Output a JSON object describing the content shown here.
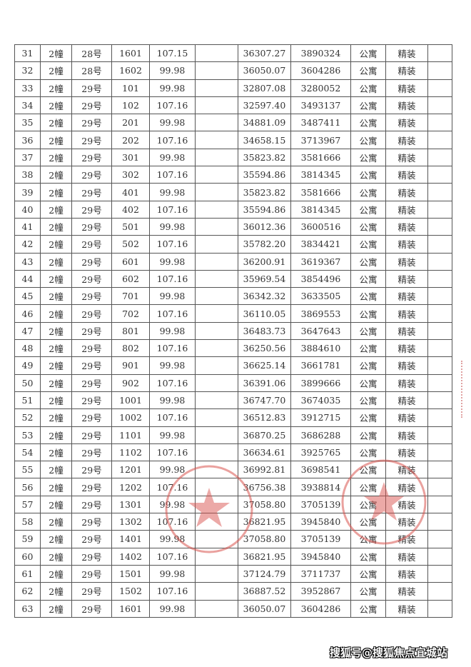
{
  "table": {
    "rows": [
      [
        "31",
        "2幢",
        "28号",
        "1601",
        "107.15",
        "",
        "36307.27",
        "3890324",
        "公寓",
        "精装",
        ""
      ],
      [
        "32",
        "2幢",
        "28号",
        "1602",
        "99.98",
        "",
        "36050.07",
        "3604286",
        "公寓",
        "精装",
        ""
      ],
      [
        "33",
        "2幢",
        "29号",
        "101",
        "99.98",
        "",
        "32807.08",
        "3280052",
        "公寓",
        "精装",
        ""
      ],
      [
        "34",
        "2幢",
        "29号",
        "102",
        "107.16",
        "",
        "32597.40",
        "3493137",
        "公寓",
        "精装",
        ""
      ],
      [
        "35",
        "2幢",
        "29号",
        "201",
        "99.98",
        "",
        "34881.09",
        "3487411",
        "公寓",
        "精装",
        ""
      ],
      [
        "36",
        "2幢",
        "29号",
        "202",
        "107.16",
        "",
        "34658.15",
        "3713967",
        "公寓",
        "精装",
        ""
      ],
      [
        "37",
        "2幢",
        "29号",
        "301",
        "99.98",
        "",
        "35823.82",
        "3581666",
        "公寓",
        "精装",
        ""
      ],
      [
        "38",
        "2幢",
        "29号",
        "302",
        "107.16",
        "",
        "35594.86",
        "3814345",
        "公寓",
        "精装",
        ""
      ],
      [
        "39",
        "2幢",
        "29号",
        "401",
        "99.98",
        "",
        "35823.82",
        "3581666",
        "公寓",
        "精装",
        ""
      ],
      [
        "40",
        "2幢",
        "29号",
        "402",
        "107.16",
        "",
        "35594.86",
        "3814345",
        "公寓",
        "精装",
        ""
      ],
      [
        "41",
        "2幢",
        "29号",
        "501",
        "99.98",
        "",
        "36012.36",
        "3600516",
        "公寓",
        "精装",
        ""
      ],
      [
        "42",
        "2幢",
        "29号",
        "502",
        "107.16",
        "",
        "35782.20",
        "3834421",
        "公寓",
        "精装",
        ""
      ],
      [
        "43",
        "2幢",
        "29号",
        "601",
        "99.98",
        "",
        "36200.91",
        "3619367",
        "公寓",
        "精装",
        ""
      ],
      [
        "44",
        "2幢",
        "29号",
        "602",
        "107.16",
        "",
        "35969.54",
        "3854496",
        "公寓",
        "精装",
        ""
      ],
      [
        "45",
        "2幢",
        "29号",
        "701",
        "99.98",
        "",
        "36342.32",
        "3633505",
        "公寓",
        "精装",
        ""
      ],
      [
        "46",
        "2幢",
        "29号",
        "702",
        "107.16",
        "",
        "36110.05",
        "3869553",
        "公寓",
        "精装",
        ""
      ],
      [
        "47",
        "2幢",
        "29号",
        "801",
        "99.98",
        "",
        "36483.73",
        "3647643",
        "公寓",
        "精装",
        ""
      ],
      [
        "48",
        "2幢",
        "29号",
        "802",
        "107.16",
        "",
        "36250.56",
        "3884610",
        "公寓",
        "精装",
        ""
      ],
      [
        "49",
        "2幢",
        "29号",
        "901",
        "99.98",
        "",
        "36625.14",
        "3661781",
        "公寓",
        "精装",
        ""
      ],
      [
        "50",
        "2幢",
        "29号",
        "902",
        "107.16",
        "",
        "36391.06",
        "3899666",
        "公寓",
        "精装",
        ""
      ],
      [
        "51",
        "2幢",
        "29号",
        "1001",
        "99.98",
        "",
        "36747.70",
        "3674035",
        "公寓",
        "精装",
        ""
      ],
      [
        "52",
        "2幢",
        "29号",
        "1002",
        "107.16",
        "",
        "36512.83",
        "3912715",
        "公寓",
        "精装",
        ""
      ],
      [
        "53",
        "2幢",
        "29号",
        "1101",
        "99.98",
        "",
        "36870.25",
        "3686288",
        "公寓",
        "精装",
        ""
      ],
      [
        "54",
        "2幢",
        "29号",
        "1102",
        "107.16",
        "",
        "36634.61",
        "3925765",
        "公寓",
        "精装",
        ""
      ],
      [
        "55",
        "2幢",
        "29号",
        "1201",
        "99.98",
        "",
        "36992.81",
        "3698541",
        "公寓",
        "精装",
        ""
      ],
      [
        "56",
        "2幢",
        "29号",
        "1202",
        "107.16",
        "",
        "36756.38",
        "3938814",
        "公寓",
        "精装",
        ""
      ],
      [
        "57",
        "2幢",
        "29号",
        "1301",
        "99.98",
        "",
        "37058.80",
        "3705139",
        "公寓",
        "精装",
        ""
      ],
      [
        "58",
        "2幢",
        "29号",
        "1302",
        "107.16",
        "",
        "36821.95",
        "3945840",
        "公寓",
        "精装",
        ""
      ],
      [
        "59",
        "2幢",
        "29号",
        "1401",
        "99.98",
        "",
        "37058.80",
        "3705139",
        "公寓",
        "精装",
        ""
      ],
      [
        "60",
        "2幢",
        "29号",
        "1402",
        "107.16",
        "",
        "36821.95",
        "3945840",
        "公寓",
        "精装",
        ""
      ],
      [
        "61",
        "2幢",
        "29号",
        "1501",
        "99.98",
        "",
        "37124.79",
        "3711737",
        "公寓",
        "精装",
        ""
      ],
      [
        "62",
        "2幢",
        "29号",
        "1502",
        "107.16",
        "",
        "36887.52",
        "3952867",
        "公寓",
        "精装",
        ""
      ],
      [
        "63",
        "2幢",
        "29号",
        "1601",
        "99.98",
        "",
        "36050.07",
        "3604286",
        "公寓",
        "精装",
        ""
      ]
    ]
  },
  "stamps": {
    "color": "#d9534f"
  },
  "watermark": "搜狐号@搜狐焦点宜城站"
}
